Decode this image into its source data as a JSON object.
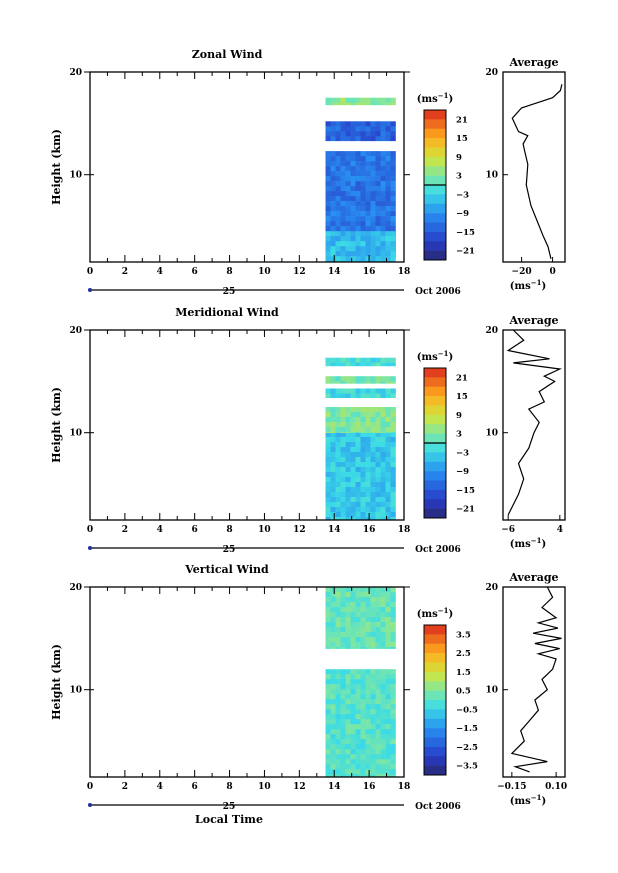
{
  "chart_data": [
    {
      "type": "heatmap",
      "title": "Zonal Wind",
      "ylabel": "Height (km)",
      "x_ticks": [
        0,
        2,
        4,
        6,
        8,
        10,
        12,
        14,
        16,
        18
      ],
      "y_ticks": [
        10,
        20
      ],
      "xlim": [
        0,
        18
      ],
      "ylim": [
        1.5,
        20
      ],
      "date_day": "25",
      "date_label": "Oct 2006",
      "colorbar": {
        "unit": "(ms",
        "unit_exp": "−1",
        "ticks": [
          21,
          15,
          9,
          3,
          -3,
          -9,
          -15,
          -21
        ],
        "ticks_text": [
          "21",
          "15",
          "9",
          "3",
          "−3",
          "−9",
          "−15",
          "−21"
        ],
        "range": [
          -24,
          24
        ]
      },
      "data_extent_x": [
        13.5,
        17.3
      ],
      "bands": [
        {
          "y": [
            2.0,
            12.3
          ],
          "value": -12
        },
        {
          "y": [
            1.5,
            4.5
          ],
          "value": -5
        },
        {
          "y": [
            13.3,
            15.2
          ],
          "value": -14
        },
        {
          "y": [
            16.8,
            17.5
          ],
          "value": 4
        }
      ]
    },
    {
      "type": "line",
      "title": "Average",
      "xlabel": "(ms",
      "xlabel_exp": "−1",
      "x_ticks": [
        -20,
        0
      ],
      "x_ticks_text": [
        "−20",
        "0"
      ],
      "y_ticks": [
        10,
        20
      ],
      "xlim": [
        -32,
        8
      ],
      "ylim": [
        1.5,
        20
      ],
      "profile": [
        [
          -1,
          1.8
        ],
        [
          -3,
          3
        ],
        [
          -6,
          4
        ],
        [
          -10,
          5.5
        ],
        [
          -14,
          7
        ],
        [
          -17,
          9
        ],
        [
          -16,
          11
        ],
        [
          -18,
          12.3
        ],
        [
          -19,
          13
        ],
        [
          -16,
          13.8
        ],
        [
          -22,
          14.2
        ],
        [
          -26,
          15.5
        ],
        [
          -20,
          16.5
        ],
        [
          -10,
          17
        ],
        [
          0,
          17.5
        ],
        [
          5,
          18.2
        ],
        [
          6,
          18.8
        ]
      ]
    },
    {
      "type": "heatmap",
      "title": "Meridional Wind",
      "ylabel": "Height (km)",
      "x_ticks": [
        0,
        2,
        4,
        6,
        8,
        10,
        12,
        14,
        16,
        18
      ],
      "y_ticks": [
        10,
        20
      ],
      "xlim": [
        0,
        18
      ],
      "ylim": [
        1.5,
        20
      ],
      "date_day": "25",
      "date_label": "Oct 2006",
      "colorbar": {
        "unit": "(ms",
        "unit_exp": "−1",
        "ticks": [
          21,
          15,
          9,
          3,
          -3,
          -9,
          -15,
          -21
        ],
        "ticks_text": [
          "21",
          "15",
          "9",
          "3",
          "−3",
          "−9",
          "−15",
          "−21"
        ],
        "range": [
          -24,
          24
        ]
      },
      "data_extent_x": [
        13.5,
        17.3
      ],
      "bands": [
        {
          "y": [
            1.5,
            12.5
          ],
          "value": -4
        },
        {
          "y": [
            10,
            12.5
          ],
          "value": 3
        },
        {
          "y": [
            13.4,
            14.3
          ],
          "value": -2
        },
        {
          "y": [
            14.8,
            15.5
          ],
          "value": 2
        },
        {
          "y": [
            16.5,
            17.3
          ],
          "value": -1
        }
      ]
    },
    {
      "type": "line",
      "title": "Average",
      "xlabel": "(ms",
      "xlabel_exp": "−1",
      "x_ticks": [
        -6,
        4
      ],
      "x_ticks_text": [
        "−6",
        "4"
      ],
      "y_ticks": [
        10,
        20
      ],
      "xlim": [
        -7,
        5
      ],
      "ylim": [
        1.5,
        20
      ],
      "profile": [
        [
          -6,
          2
        ],
        [
          -5,
          3
        ],
        [
          -4,
          4
        ],
        [
          -3,
          5.5
        ],
        [
          -4,
          7
        ],
        [
          -2,
          8.5
        ],
        [
          -1,
          10
        ],
        [
          0,
          11
        ],
        [
          -2,
          12.3
        ],
        [
          1,
          13
        ],
        [
          0,
          14
        ],
        [
          3,
          15
        ],
        [
          1,
          15.5
        ],
        [
          4,
          16.2
        ],
        [
          -5,
          16.8
        ],
        [
          2,
          17.2
        ],
        [
          -6,
          18
        ],
        [
          -3,
          19
        ],
        [
          -5,
          20
        ]
      ]
    },
    {
      "type": "heatmap",
      "title": "Vertical Wind",
      "ylabel": "Height (km)",
      "xlabel": "Local Time",
      "x_ticks": [
        0,
        2,
        4,
        6,
        8,
        10,
        12,
        14,
        16,
        18
      ],
      "y_ticks": [
        10,
        20
      ],
      "xlim": [
        0,
        18
      ],
      "ylim": [
        1.5,
        20
      ],
      "date_day": "25",
      "date_label": "Oct 2006",
      "colorbar": {
        "unit": "(ms",
        "unit_exp": "−1",
        "ticks": [
          3.5,
          2.5,
          1.5,
          0.5,
          -0.5,
          -1.5,
          -2.5,
          -3.5
        ],
        "ticks_text": [
          "3.5",
          "2.5",
          "1.5",
          "0.5",
          "−0.5",
          "−1.5",
          "−2.5",
          "−3.5"
        ],
        "range": [
          -4,
          4
        ]
      },
      "data_extent_x": [
        13.5,
        17.3
      ],
      "bands": [
        {
          "y": [
            1.5,
            12
          ],
          "value": 0
        },
        {
          "y": [
            14,
            20
          ],
          "value": 0.2
        }
      ]
    },
    {
      "type": "line",
      "title": "Average",
      "xlabel": "(ms",
      "xlabel_exp": "−1",
      "x_ticks": [
        -0.15,
        0.1
      ],
      "x_ticks_text": [
        "−0.15",
        "0.10"
      ],
      "y_ticks": [
        10,
        20
      ],
      "xlim": [
        -0.2,
        0.15
      ],
      "ylim": [
        1.5,
        20
      ],
      "profile": [
        [
          -0.05,
          2
        ],
        [
          -0.13,
          2.5
        ],
        [
          0.05,
          3
        ],
        [
          -0.15,
          3.8
        ],
        [
          -0.08,
          5
        ],
        [
          -0.1,
          6
        ],
        [
          -0.05,
          7
        ],
        [
          0,
          8
        ],
        [
          -0.02,
          9
        ],
        [
          0.05,
          10
        ],
        [
          0.02,
          11
        ],
        [
          0.08,
          12
        ],
        [
          0.1,
          13
        ],
        [
          0,
          13.5
        ],
        [
          0.12,
          14
        ],
        [
          -0.02,
          14.5
        ],
        [
          0.13,
          15
        ],
        [
          -0.03,
          15.5
        ],
        [
          0.11,
          16
        ],
        [
          0,
          16.5
        ],
        [
          0.1,
          17
        ],
        [
          0.02,
          18
        ],
        [
          0.08,
          19
        ],
        [
          0.05,
          20
        ]
      ]
    }
  ]
}
